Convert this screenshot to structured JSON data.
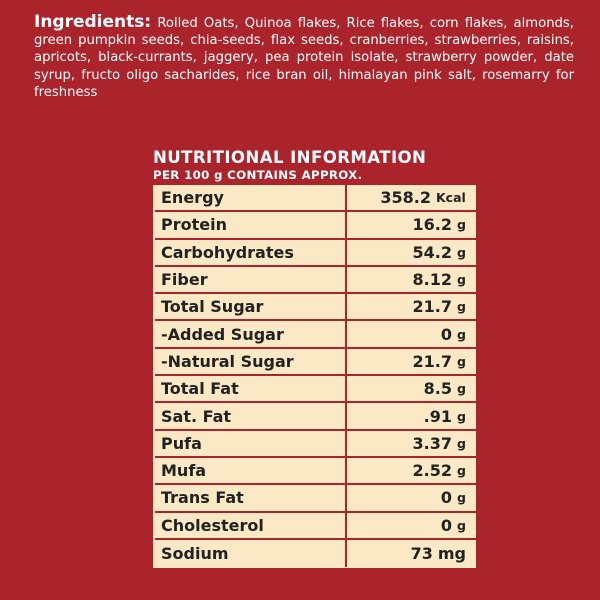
{
  "ingredients": {
    "label": "Ingredients:",
    "text": "Rolled Oats, Quinoa flakes, Rice flakes, corn flakes, almonds, green pumpkin seeds, chia-seeds, flax seeds, cranberries, strawberries, raisins, apricots, black-currants, jaggery, pea protein isolate, strawberry powder, date syrup, fructo oligo sacharides, rice bran oil, himalayan pink salt, rosemarry for freshness"
  },
  "nutrition": {
    "title": "NUTRITIONAL INFORMATION",
    "subtitle": "PER 100 g CONTAINS APPROX.",
    "rows": [
      {
        "name": "Energy",
        "value": "358.2",
        "unit": "Kcal"
      },
      {
        "name": "Protein",
        "value": "16.2",
        "unit": "g"
      },
      {
        "name": "Carbohydrates",
        "value": "54.2",
        "unit": "g"
      },
      {
        "name": "Fiber",
        "value": "8.12",
        "unit": "g"
      },
      {
        "name": "Total Sugar",
        "value": "21.7",
        "unit": "g"
      },
      {
        "name": "-Added Sugar",
        "value": "0",
        "unit": "g"
      },
      {
        "name": "-Natural Sugar",
        "value": "21.7",
        "unit": "g"
      },
      {
        "name": "Total Fat",
        "value": "8.5",
        "unit": "g"
      },
      {
        "name": "Sat. Fat",
        "value": ".91",
        "unit": "g"
      },
      {
        "name": "Pufa",
        "value": "3.37",
        "unit": "g"
      },
      {
        "name": "Mufa",
        "value": "2.52",
        "unit": "g"
      },
      {
        "name": "Trans Fat",
        "value": "0",
        "unit": "g"
      },
      {
        "name": "Cholesterol",
        "value": "0",
        "unit": "g"
      },
      {
        "name": "Sodium",
        "value": "73",
        "unit": "mg"
      }
    ]
  },
  "colors": {
    "background": "#ab232b",
    "table_fill": "#fbe8c4",
    "text_light": "#ffffff",
    "text_dark": "#222222"
  }
}
